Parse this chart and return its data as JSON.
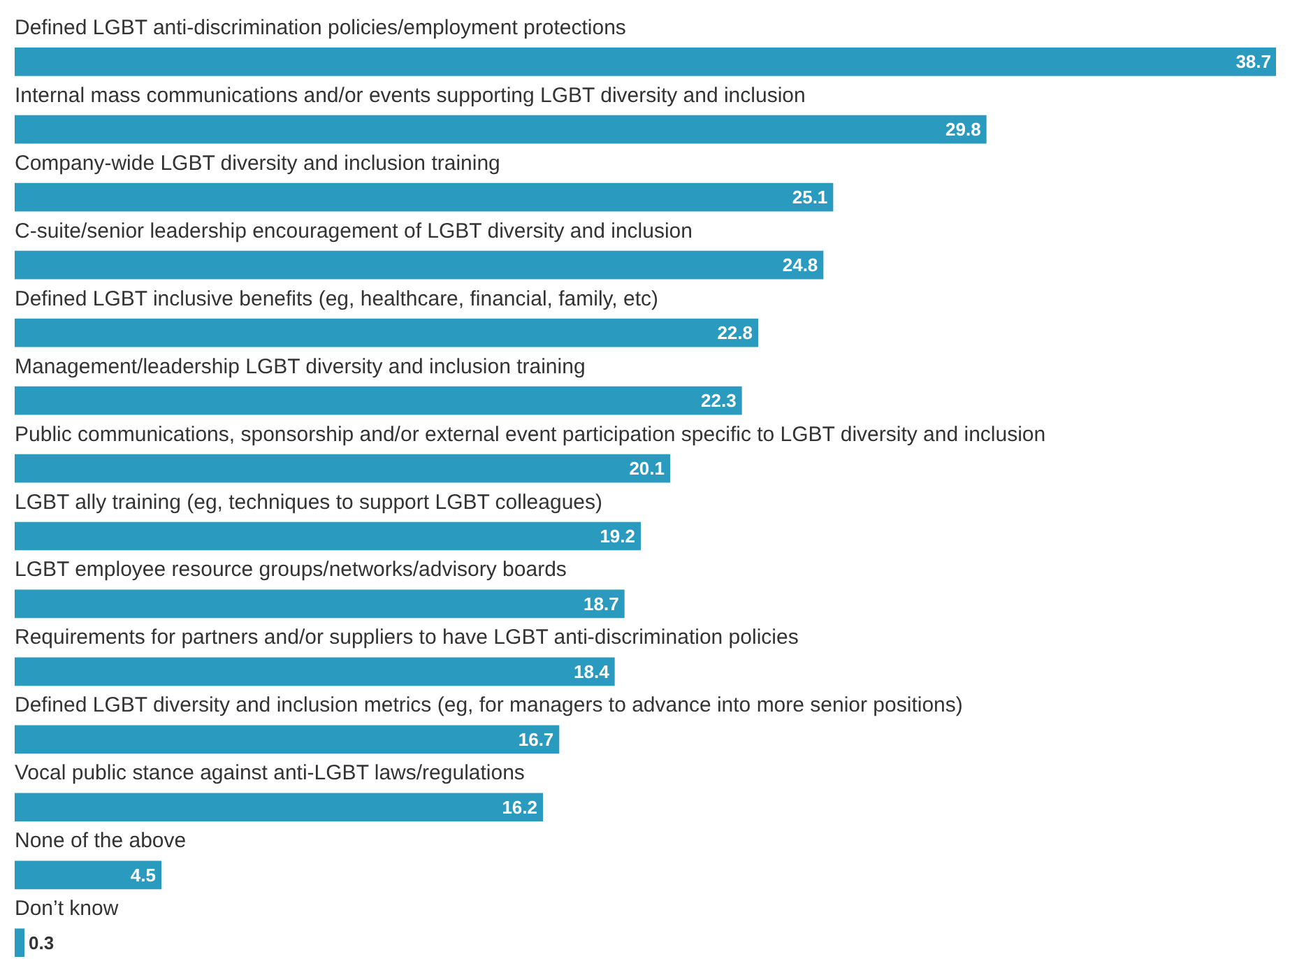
{
  "chart_data": {
    "type": "bar",
    "orientation": "horizontal",
    "data_labels": true,
    "color": "#2a9bbf",
    "categories": [
      "Defined LGBT anti-discrimination policies/employment protections",
      "Internal mass communications and/or events supporting LGBT diversity and inclusion",
      "Company-wide LGBT diversity and inclusion training",
      "C-suite/senior leadership encouragement of LGBT diversity and inclusion",
      "Defined LGBT inclusive benefits (eg, healthcare, financial, family, etc)",
      "Management/leadership LGBT diversity and inclusion training",
      "Public communications, sponsorship and/or external event participation specific to LGBT diversity and inclusion",
      "LGBT ally training (eg, techniques to support LGBT colleagues)",
      "LGBT employee resource groups/networks/advisory boards",
      "Requirements for partners and/or suppliers to have LGBT anti-discrimination policies",
      "Defined LGBT diversity and inclusion metrics (eg, for managers to advance into more senior positions)",
      "Vocal public stance against anti-LGBT laws/regulations",
      "None of the above",
      "Don’t know"
    ],
    "values": [
      38.7,
      29.8,
      25.1,
      24.8,
      22.8,
      22.3,
      20.1,
      19.2,
      18.7,
      18.4,
      16.7,
      16.2,
      4.5,
      0.3
    ]
  }
}
